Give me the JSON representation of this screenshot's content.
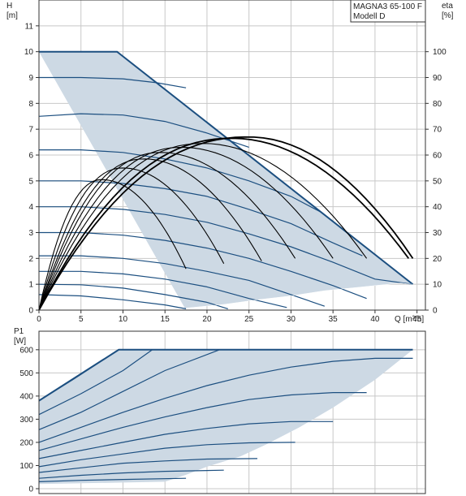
{
  "colors": {
    "region_fill": "#cdd9e4",
    "curve_line": "#1c4f80",
    "eta_line": "#000000",
    "grid": "#c8c8c8",
    "axis": "#333333"
  },
  "title_box": {
    "line1": "MAGNA3 65-100 F",
    "line2": "Modell D"
  },
  "chart_data": [
    {
      "type": "line",
      "x_ticks": [
        0,
        5,
        10,
        15,
        20,
        25,
        30,
        35,
        40,
        45
      ],
      "y_ticks": [
        0,
        1,
        2,
        3,
        4,
        5,
        6,
        7,
        8,
        9,
        10,
        11
      ],
      "y2_ticks": [
        0,
        10,
        20,
        30,
        40,
        50,
        60,
        70,
        80,
        90,
        100
      ],
      "ylabel": "H",
      "ylabel_unit": "[m]",
      "y2label": "eta",
      "y2label_unit": "[%]",
      "xlabel": "Q [m³/h]",
      "xlim": [
        0,
        46
      ],
      "ylim": [
        0,
        12
      ],
      "y2lim": [
        0,
        120
      ],
      "grid": true,
      "operating_region": [
        [
          0,
          10
        ],
        [
          9.3,
          10
        ],
        [
          44.5,
          1.0
        ],
        [
          43,
          1.05
        ],
        [
          38.5,
          0.9
        ],
        [
          34,
          0.75
        ],
        [
          30,
          0.55
        ],
        [
          26,
          0.4
        ],
        [
          22,
          0.22
        ],
        [
          17.5,
          0.08
        ],
        [
          17.5,
          0
        ]
      ],
      "head_curves": [
        {
          "shutoff": 9.0,
          "points": [
            [
              0,
              9.0
            ],
            [
              5,
              9.0
            ],
            [
              10,
              8.95
            ],
            [
              14,
              8.8
            ],
            [
              17.5,
              8.6
            ]
          ]
        },
        {
          "shutoff": 7.5,
          "points": [
            [
              0,
              7.5
            ],
            [
              5,
              7.6
            ],
            [
              10,
              7.55
            ],
            [
              15,
              7.3
            ],
            [
              20,
              6.85
            ],
            [
              25,
              6.3
            ]
          ]
        },
        {
          "shutoff": 6.2,
          "points": [
            [
              0,
              6.2
            ],
            [
              5,
              6.2
            ],
            [
              10,
              6.1
            ],
            [
              15,
              5.85
            ],
            [
              20,
              5.5
            ],
            [
              25,
              5.0
            ],
            [
              30,
              4.4
            ],
            [
              33.5,
              3.8
            ]
          ]
        },
        {
          "shutoff": 5.0,
          "points": [
            [
              0,
              5.0
            ],
            [
              5,
              5.0
            ],
            [
              10,
              4.9
            ],
            [
              15,
              4.7
            ],
            [
              20,
              4.4
            ],
            [
              25,
              3.9
            ],
            [
              30,
              3.35
            ],
            [
              35,
              2.6
            ],
            [
              38.5,
              2.1
            ]
          ]
        },
        {
          "shutoff": 4.0,
          "points": [
            [
              0,
              4.0
            ],
            [
              5,
              4.0
            ],
            [
              10,
              3.9
            ],
            [
              15,
              3.7
            ],
            [
              20,
              3.4
            ],
            [
              25,
              2.95
            ],
            [
              30,
              2.45
            ],
            [
              35,
              1.85
            ],
            [
              40,
              1.2
            ],
            [
              44.5,
              1.0
            ]
          ]
        },
        {
          "shutoff": 3.0,
          "points": [
            [
              0,
              3.0
            ],
            [
              5,
              3.0
            ],
            [
              10,
              2.9
            ],
            [
              15,
              2.7
            ],
            [
              20,
              2.4
            ],
            [
              25,
              2.0
            ],
            [
              30,
              1.5
            ],
            [
              35,
              0.95
            ],
            [
              39,
              0.45
            ]
          ]
        },
        {
          "shutoff": 2.1,
          "points": [
            [
              0,
              2.1
            ],
            [
              5,
              2.1
            ],
            [
              10,
              2.0
            ],
            [
              15,
              1.8
            ],
            [
              20,
              1.5
            ],
            [
              25,
              1.15
            ],
            [
              30,
              0.6
            ],
            [
              34,
              0.15
            ]
          ]
        },
        {
          "shutoff": 1.5,
          "points": [
            [
              0,
              1.5
            ],
            [
              5,
              1.5
            ],
            [
              10,
              1.4
            ],
            [
              15,
              1.2
            ],
            [
              20,
              0.9
            ],
            [
              25,
              0.45
            ],
            [
              29.5,
              0.1
            ]
          ]
        },
        {
          "shutoff": 1.0,
          "points": [
            [
              0,
              1.0
            ],
            [
              5,
              0.98
            ],
            [
              10,
              0.85
            ],
            [
              15,
              0.6
            ],
            [
              20,
              0.3
            ],
            [
              22.5,
              0.05
            ]
          ]
        },
        {
          "shutoff": 0.6,
          "points": [
            [
              0,
              0.6
            ],
            [
              5,
              0.55
            ],
            [
              10,
              0.4
            ],
            [
              15,
              0.2
            ],
            [
              17.5,
              0.05
            ]
          ]
        }
      ],
      "eta_curves": [
        {
          "qmax": 17.5,
          "peak_q": 7.5,
          "peak_eta": 50.5,
          "end_eta": 16
        },
        {
          "qmax": 22,
          "peak_q": 10,
          "peak_eta": 55,
          "end_eta": 18
        },
        {
          "qmax": 26.5,
          "peak_q": 12.5,
          "peak_eta": 58.5,
          "end_eta": 19
        },
        {
          "qmax": 30.5,
          "peak_q": 14.5,
          "peak_eta": 61,
          "end_eta": 20
        },
        {
          "qmax": 35,
          "peak_q": 17,
          "peak_eta": 63,
          "end_eta": 20
        },
        {
          "qmax": 39,
          "peak_q": 19.5,
          "peak_eta": 64.5,
          "end_eta": 20
        },
        {
          "qmax": 44,
          "peak_q": 23,
          "peak_eta": 66.5,
          "end_eta": 20
        },
        {
          "qmax": 44.5,
          "peak_q": 25,
          "peak_eta": 67,
          "end_eta": 20
        }
      ]
    },
    {
      "type": "line",
      "x_ticks": [
        0,
        5,
        10,
        15,
        20,
        25,
        30,
        35,
        40,
        45
      ],
      "y_ticks": [
        0,
        100,
        200,
        300,
        400,
        500,
        600
      ],
      "ylabel": "P1",
      "ylabel_unit": "[W]",
      "xlim": [
        0,
        46
      ],
      "ylim": [
        0,
        680
      ],
      "grid": true,
      "operating_region": [
        [
          0,
          380
        ],
        [
          9.5,
          600
        ],
        [
          44.5,
          600
        ],
        [
          40,
          470
        ],
        [
          35,
          350
        ],
        [
          31,
          265
        ],
        [
          27,
          190
        ],
        [
          24,
          140
        ],
        [
          20,
          95
        ],
        [
          17.5,
          60
        ],
        [
          15,
          30
        ],
        [
          0,
          20
        ]
      ],
      "power_curves": [
        [
          [
            0,
            380
          ],
          [
            4,
            470
          ],
          [
            9.5,
            600
          ]
        ],
        [
          [
            0,
            320
          ],
          [
            5,
            410
          ],
          [
            10,
            510
          ],
          [
            13.5,
            600
          ]
        ],
        [
          [
            0,
            255
          ],
          [
            5,
            330
          ],
          [
            10,
            420
          ],
          [
            15,
            510
          ],
          [
            21.5,
            600
          ]
        ],
        [
          [
            0,
            200
          ],
          [
            5,
            265
          ],
          [
            10,
            330
          ],
          [
            15,
            390
          ],
          [
            20,
            445
          ],
          [
            25,
            490
          ],
          [
            30,
            525
          ],
          [
            35,
            550
          ],
          [
            40,
            563
          ],
          [
            44.5,
            563
          ]
        ],
        [
          [
            0,
            165
          ],
          [
            5,
            215
          ],
          [
            10,
            265
          ],
          [
            15,
            310
          ],
          [
            20,
            350
          ],
          [
            25,
            385
          ],
          [
            30,
            405
          ],
          [
            35,
            415
          ],
          [
            39,
            415
          ]
        ],
        [
          [
            0,
            130
          ],
          [
            5,
            165
          ],
          [
            10,
            200
          ],
          [
            15,
            235
          ],
          [
            20,
            260
          ],
          [
            25,
            280
          ],
          [
            30,
            290
          ],
          [
            35,
            290
          ]
        ],
        [
          [
            0,
            95
          ],
          [
            5,
            125
          ],
          [
            10,
            150
          ],
          [
            15,
            175
          ],
          [
            20,
            190
          ],
          [
            25,
            198
          ],
          [
            30.5,
            200
          ]
        ],
        [
          [
            0,
            70
          ],
          [
            5,
            90
          ],
          [
            10,
            110
          ],
          [
            15,
            120
          ],
          [
            20,
            128
          ],
          [
            26,
            130
          ]
        ],
        [
          [
            0,
            45
          ],
          [
            5,
            58
          ],
          [
            10,
            68
          ],
          [
            15,
            75
          ],
          [
            22,
            80
          ]
        ],
        [
          [
            0,
            30
          ],
          [
            5,
            36
          ],
          [
            10,
            40
          ],
          [
            17.5,
            45
          ]
        ]
      ]
    }
  ]
}
